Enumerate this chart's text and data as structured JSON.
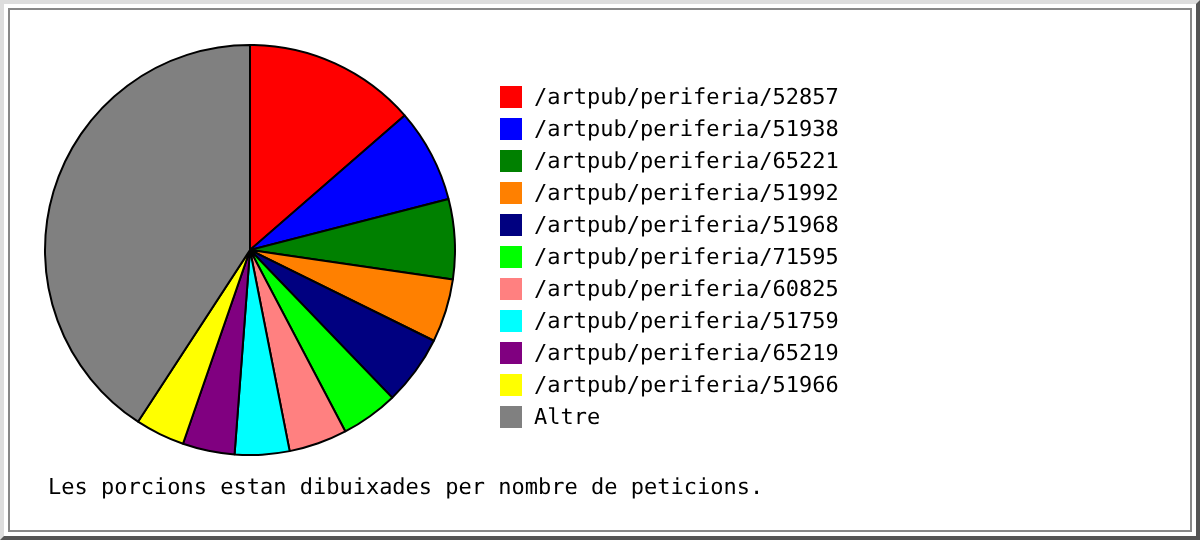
{
  "chart_data": {
    "type": "pie",
    "categories": [
      "/artpub/periferia/52857",
      "/artpub/periferia/51938",
      "/artpub/periferia/65221",
      "/artpub/periferia/51992",
      "/artpub/periferia/51968",
      "/artpub/periferia/71595",
      "/artpub/periferia/60825",
      "/artpub/periferia/51759",
      "/artpub/periferia/65219",
      "/artpub/periferia/51966",
      "Altre"
    ],
    "values": [
      13.6,
      7.4,
      6.3,
      5.0,
      5.5,
      4.5,
      4.6,
      4.3,
      4.1,
      3.9,
      40.8
    ],
    "colors": [
      "#ff0000",
      "#0000ff",
      "#008000",
      "#ff8000",
      "#000080",
      "#00ff00",
      "#ff8080",
      "#00ffff",
      "#800080",
      "#ffff00",
      "#808080"
    ],
    "legend": "right",
    "annotations": [
      "Les porcions estan dibuixades per nombre de peticions."
    ]
  }
}
